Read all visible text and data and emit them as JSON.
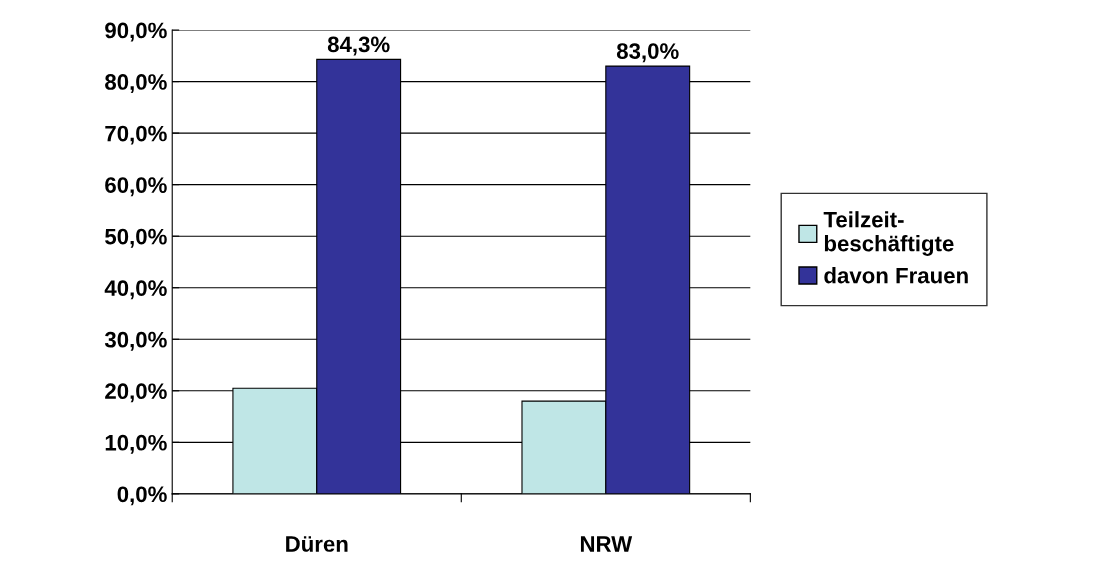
{
  "chart_data": {
    "type": "bar",
    "categories": [
      "Düren",
      "NRW"
    ],
    "series": [
      {
        "name": "Teilzeit-beschäftigte",
        "color": "#bfe6e6",
        "values": [
          20.5,
          18.0
        ]
      },
      {
        "name": "davon Frauen",
        "color": "#333399",
        "values": [
          84.3,
          83.0
        ],
        "value_labels": [
          "84,3%",
          "83,0%"
        ]
      }
    ],
    "ylim": [
      0,
      90
    ],
    "yticks": [
      {
        "value": 0,
        "label": "0,0%"
      },
      {
        "value": 10,
        "label": "10,0%"
      },
      {
        "value": 20,
        "label": "20,0%"
      },
      {
        "value": 30,
        "label": "30,0%"
      },
      {
        "value": 40,
        "label": "40,0%"
      },
      {
        "value": 50,
        "label": "50,0%"
      },
      {
        "value": 60,
        "label": "60,0%"
      },
      {
        "value": 70,
        "label": "70,0%"
      },
      {
        "value": 80,
        "label": "80,0%"
      },
      {
        "value": 90,
        "label": "90,0%"
      }
    ],
    "grid": "y",
    "legend": "right"
  }
}
